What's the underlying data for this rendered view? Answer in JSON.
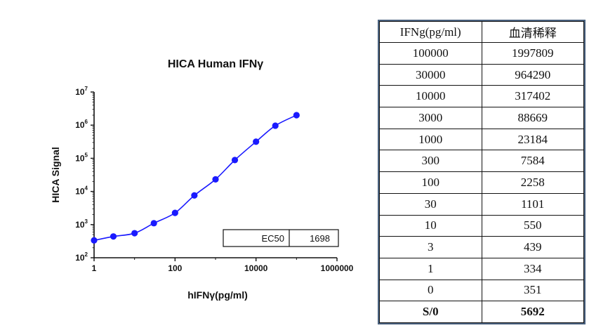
{
  "chart_data": {
    "type": "scatter",
    "title": "HICA Human IFNγ",
    "xlabel": "hIFNγ(pg/ml)",
    "ylabel": "HICA Signal",
    "x_scale": "log",
    "y_scale": "log",
    "xlim": [
      1,
      1000000
    ],
    "ylim": [
      100,
      10000000
    ],
    "x_ticks": [
      {
        "value": 1,
        "label": "1"
      },
      {
        "value": 100,
        "label": "100"
      },
      {
        "value": 10000,
        "label": "10000"
      },
      {
        "value": 1000000,
        "label": "1000000"
      }
    ],
    "y_ticks": [
      {
        "value": 100,
        "base": "10",
        "exp": "2"
      },
      {
        "value": 1000,
        "base": "10",
        "exp": "3"
      },
      {
        "value": 10000,
        "base": "10",
        "exp": "4"
      },
      {
        "value": 100000,
        "base": "10",
        "exp": "5"
      },
      {
        "value": 1000000,
        "base": "10",
        "exp": "6"
      },
      {
        "value": 10000000,
        "base": "10",
        "exp": "7"
      }
    ],
    "points": [
      {
        "x": 1,
        "y": 334
      },
      {
        "x": 3,
        "y": 439
      },
      {
        "x": 10,
        "y": 550
      },
      {
        "x": 30,
        "y": 1101
      },
      {
        "x": 100,
        "y": 2258
      },
      {
        "x": 300,
        "y": 7584
      },
      {
        "x": 1000,
        "y": 23184
      },
      {
        "x": 3000,
        "y": 88669
      },
      {
        "x": 10000,
        "y": 317402
      },
      {
        "x": 30000,
        "y": 964290
      },
      {
        "x": 100000,
        "y": 1997809
      }
    ],
    "fit_curve": true,
    "grid": false,
    "series_color": "#1a1aff",
    "inset_box": {
      "label": "EC50",
      "value": "1698"
    }
  },
  "table": {
    "headers": [
      "IFNg(pg/ml)",
      "血清稀释"
    ],
    "rows": [
      [
        "100000",
        "1997809"
      ],
      [
        "30000",
        "964290"
      ],
      [
        "10000",
        "317402"
      ],
      [
        "3000",
        "88669"
      ],
      [
        "1000",
        "23184"
      ],
      [
        "300",
        "7584"
      ],
      [
        "100",
        "2258"
      ],
      [
        "30",
        "1101"
      ],
      [
        "10",
        "550"
      ],
      [
        "3",
        "439"
      ],
      [
        "1",
        "334"
      ],
      [
        "0",
        "351"
      ]
    ],
    "summary": [
      "S/0",
      "5692"
    ]
  }
}
